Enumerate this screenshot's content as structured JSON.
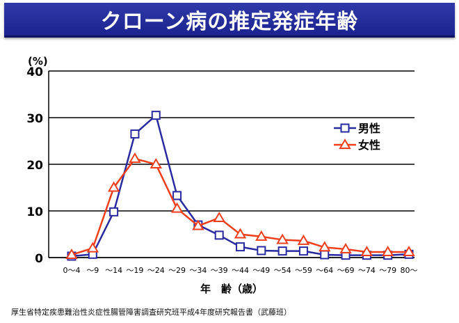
{
  "header": {
    "title": "クローン病の推定発症年齢"
  },
  "footer": {
    "source": "厚生省特定疾患難治性炎症性腸管障害調査研究班平成4年度研究報告書（武藤班）"
  },
  "chart_data": {
    "type": "line",
    "title": "",
    "ylabel": "(%)",
    "xlabel": "年　齢（歳）",
    "ylim": [
      0,
      40
    ],
    "yticks": [
      0,
      10,
      20,
      30,
      40
    ],
    "grid": true,
    "legend_position": "top-right",
    "categories": [
      "0～4",
      "～9",
      "～14",
      "～19",
      "～24",
      "～29",
      "～34",
      "～39",
      "～44",
      "～49",
      "～54",
      "～59",
      "～64",
      "～69",
      "～74",
      "～79",
      "80～"
    ],
    "series": [
      {
        "name": "男性",
        "color": "#2a2aa0",
        "marker": "square",
        "values": [
          0.3,
          0.7,
          9.8,
          26.5,
          30.5,
          13.3,
          7.0,
          4.8,
          2.3,
          1.5,
          1.4,
          1.4,
          0.6,
          0.5,
          0.5,
          0.5,
          0.7
        ]
      },
      {
        "name": "女性",
        "color": "#ef3e1c",
        "marker": "triangle",
        "values": [
          0.6,
          2.0,
          15.0,
          21.2,
          20.0,
          10.5,
          6.8,
          8.5,
          5.0,
          4.5,
          3.8,
          3.6,
          2.2,
          1.8,
          1.2,
          1.2,
          1.2
        ]
      }
    ]
  }
}
